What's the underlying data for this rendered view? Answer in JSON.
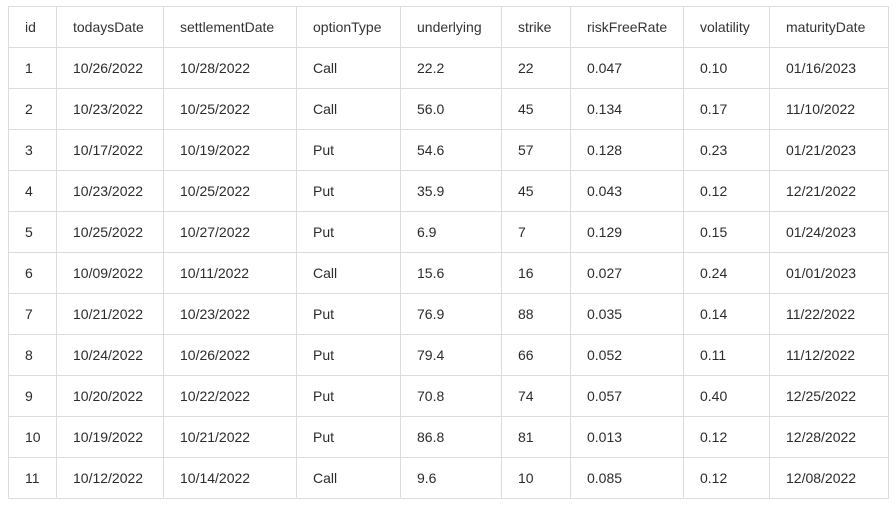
{
  "table": {
    "columns": [
      "id",
      "todaysDate",
      "settlementDate",
      "optionType",
      "underlying",
      "strike",
      "riskFreeRate",
      "volatility",
      "maturityDate"
    ],
    "rows": [
      [
        "1",
        "10/26/2022",
        "10/28/2022",
        "Call",
        "22.2",
        "22",
        "0.047",
        "0.10",
        "01/16/2023"
      ],
      [
        "2",
        "10/23/2022",
        "10/25/2022",
        "Call",
        "56.0",
        "45",
        "0.134",
        "0.17",
        "11/10/2022"
      ],
      [
        "3",
        "10/17/2022",
        "10/19/2022",
        "Put",
        "54.6",
        "57",
        "0.128",
        "0.23",
        "01/21/2023"
      ],
      [
        "4",
        "10/23/2022",
        "10/25/2022",
        "Put",
        "35.9",
        "45",
        "0.043",
        "0.12",
        "12/21/2022"
      ],
      [
        "5",
        "10/25/2022",
        "10/27/2022",
        "Put",
        "6.9",
        "7",
        "0.129",
        "0.15",
        "01/24/2023"
      ],
      [
        "6",
        "10/09/2022",
        "10/11/2022",
        "Call",
        "15.6",
        "16",
        "0.027",
        "0.24",
        "01/01/2023"
      ],
      [
        "7",
        "10/21/2022",
        "10/23/2022",
        "Put",
        "76.9",
        "88",
        "0.035",
        "0.14",
        "11/22/2022"
      ],
      [
        "8",
        "10/24/2022",
        "10/26/2022",
        "Put",
        "79.4",
        "66",
        "0.052",
        "0.11",
        "11/12/2022"
      ],
      [
        "9",
        "10/20/2022",
        "10/22/2022",
        "Put",
        "70.8",
        "74",
        "0.057",
        "0.40",
        "12/25/2022"
      ],
      [
        "10",
        "10/19/2022",
        "10/21/2022",
        "Put",
        "86.8",
        "81",
        "0.013",
        "0.12",
        "12/28/2022"
      ],
      [
        "11",
        "10/12/2022",
        "10/14/2022",
        "Call",
        "9.6",
        "10",
        "0.085",
        "0.12",
        "12/08/2022"
      ]
    ]
  }
}
